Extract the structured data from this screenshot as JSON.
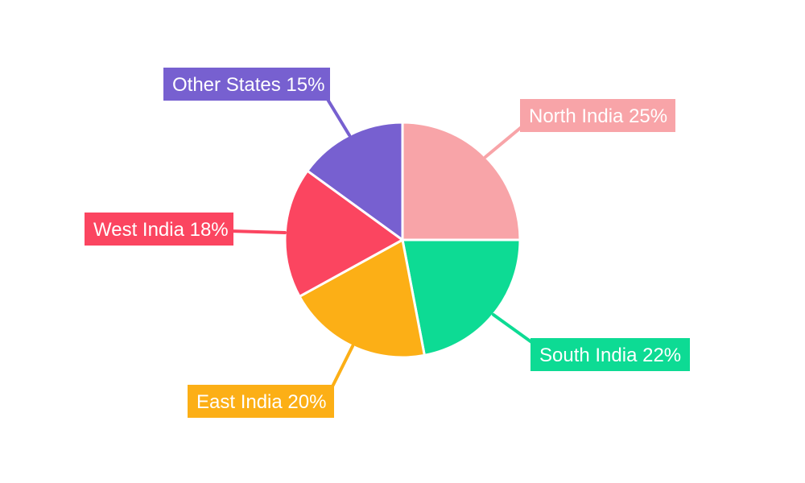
{
  "page": {
    "background_color": "#ffffff"
  },
  "chart_data": {
    "type": "pie",
    "title": "",
    "unit": "%",
    "start_angle_deg": 0,
    "direction": "clockwise",
    "legend": "none",
    "label_style": "colored-callout-boxes-with-leader-lines",
    "slices": [
      {
        "label": "North India",
        "value": 25,
        "display": "North India 25%",
        "color": "#F8A4A8"
      },
      {
        "label": "South India",
        "value": 22,
        "display": "South India 22%",
        "color": "#0DDB94"
      },
      {
        "label": "East India",
        "value": 20,
        "display": "East India 20%",
        "color": "#FCAF16"
      },
      {
        "label": "West India",
        "value": 18,
        "display": "West India 18%",
        "color": "#FB4560"
      },
      {
        "label": "Other States",
        "value": 15,
        "display": "Other States 15%",
        "color": "#7760D0"
      }
    ]
  }
}
